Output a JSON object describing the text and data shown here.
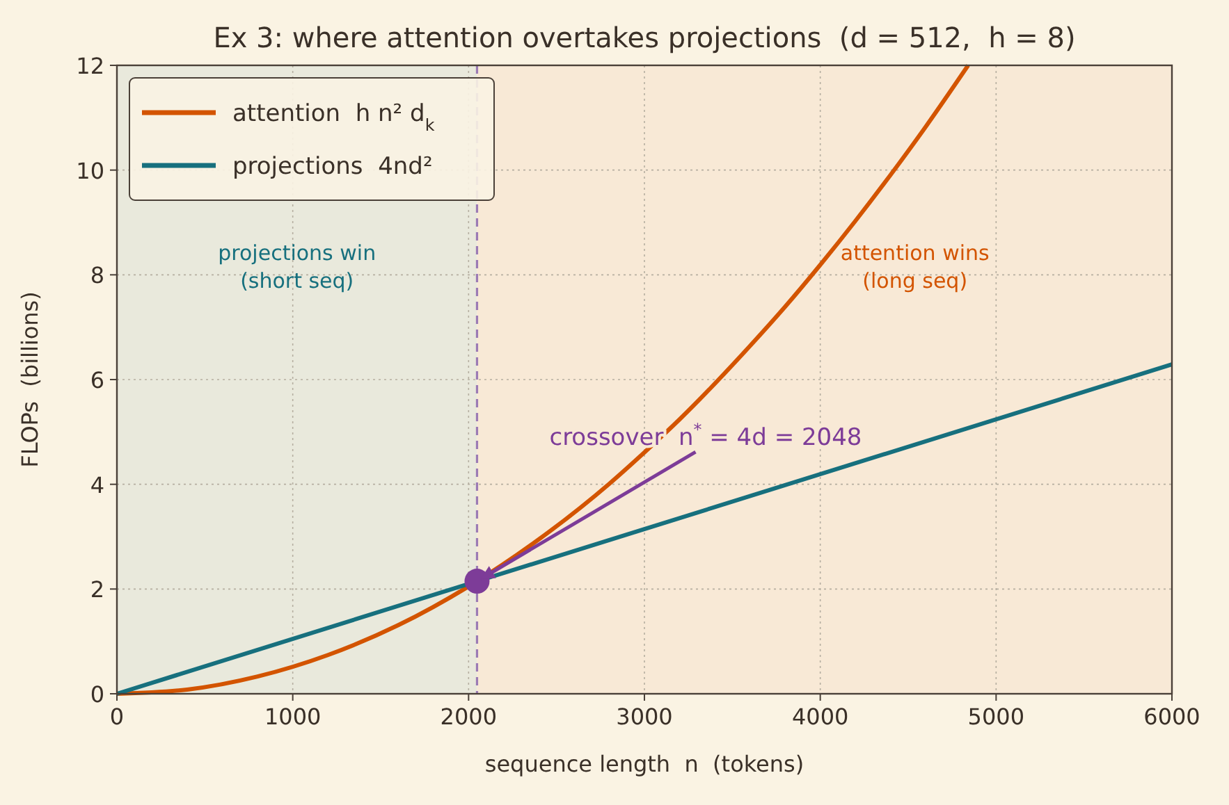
{
  "chart_data": {
    "type": "line",
    "title": "Ex 3: where attention overtakes projections  (d = 512,  h = 8)",
    "xlabel": "sequence length  n  (tokens)",
    "ylabel": "FLOPs  (billions)",
    "series": [
      {
        "name": "attention  h n² d$_{k}$",
        "color": "#d35400",
        "x": [
          0,
          400,
          800,
          1200,
          1600,
          2000,
          2400,
          2800,
          3000,
          3200,
          3600,
          3800,
          4000,
          4200,
          4400,
          4600,
          4841
        ],
        "values": [
          0,
          0.08,
          0.33,
          0.74,
          1.31,
          2.05,
          2.95,
          4.01,
          4.61,
          5.24,
          6.64,
          7.39,
          8.19,
          9.03,
          9.91,
          10.83,
          12.0
        ]
      },
      {
        "name": "projections  4nd²",
        "color": "#17707e",
        "x": [
          0,
          6000
        ],
        "values": [
          0,
          6.29
        ]
      },
      {
        "type": "scatter",
        "color": "#7d3c98",
        "x": [
          2048
        ],
        "values": [
          2.15
        ]
      }
    ],
    "xlim": [
      0,
      6000
    ],
    "xticks": [
      0,
      1000,
      2000,
      3000,
      4000,
      5000,
      6000
    ],
    "ylim": [
      0,
      12
    ],
    "yticks": [
      0,
      2,
      4,
      6,
      8,
      10,
      12
    ],
    "grid": true,
    "legend": "top left",
    "bands": [
      {
        "axis": "x",
        "from": 0,
        "to": 2048,
        "label": "projections win\n(short seq)",
        "color": "#e9e9dc"
      },
      {
        "axis": "x",
        "from": 2048,
        "to": 6000,
        "label": "attention wins\n(long seq)",
        "color": "#f8e9d6"
      }
    ],
    "ref_lines": [
      {
        "axis": "x",
        "value": 2048,
        "color": "#9b7bb5",
        "line_style": "dashed"
      }
    ],
    "annotations": [
      {
        "text": "crossover  n$^{*}$ = 4d = 2048",
        "x": 2048,
        "y": 2.15
      }
    ]
  }
}
